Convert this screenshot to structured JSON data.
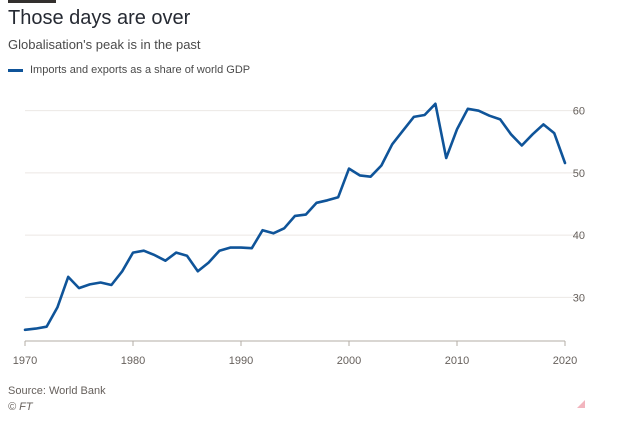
{
  "colors": {
    "series": "#0f5499",
    "grid": "#ece8e4",
    "axis": "#b3aca6",
    "text": "#66605c"
  },
  "title": "Those days are over",
  "subtitle": "Globalisation's peak is in the past",
  "legend": {
    "label": "Imports and exports as a share of world GDP"
  },
  "source": "Source: World Bank",
  "credit": "© FT",
  "chart_data": {
    "type": "line",
    "title": "Those days are over",
    "subtitle": "Globalisation's peak is in the past",
    "xlabel": "",
    "ylabel": "",
    "xlim": [
      1970,
      2020
    ],
    "ylim": [
      23,
      63
    ],
    "x_ticks": [
      1970,
      1980,
      1990,
      2000,
      2010,
      2020
    ],
    "y_ticks": [
      30,
      40,
      50,
      60
    ],
    "grid": true,
    "legend_position": "top-left",
    "series": [
      {
        "name": "Imports and exports as a share of world GDP",
        "x": [
          1970,
          1971,
          1972,
          1973,
          1974,
          1975,
          1976,
          1977,
          1978,
          1979,
          1980,
          1981,
          1982,
          1983,
          1984,
          1985,
          1986,
          1987,
          1988,
          1989,
          1990,
          1991,
          1992,
          1993,
          1994,
          1995,
          1996,
          1997,
          1998,
          1999,
          2000,
          2001,
          2002,
          2003,
          2004,
          2005,
          2006,
          2007,
          2008,
          2009,
          2010,
          2011,
          2012,
          2013,
          2014,
          2015,
          2016,
          2017,
          2018,
          2019,
          2020
        ],
        "values": [
          24.8,
          25.0,
          25.3,
          28.4,
          33.3,
          31.5,
          32.1,
          32.4,
          32.0,
          34.2,
          37.2,
          37.5,
          36.8,
          35.9,
          37.2,
          36.7,
          34.2,
          35.6,
          37.5,
          38.0,
          38.0,
          37.9,
          40.8,
          40.3,
          41.1,
          43.1,
          43.3,
          45.2,
          45.6,
          46.1,
          50.7,
          49.6,
          49.4,
          51.2,
          54.6,
          56.8,
          59.0,
          59.3,
          61.1,
          52.4,
          57.0,
          60.3,
          60.0,
          59.2,
          58.6,
          56.2,
          54.4,
          56.2,
          57.8,
          56.4,
          51.6
        ]
      }
    ]
  }
}
